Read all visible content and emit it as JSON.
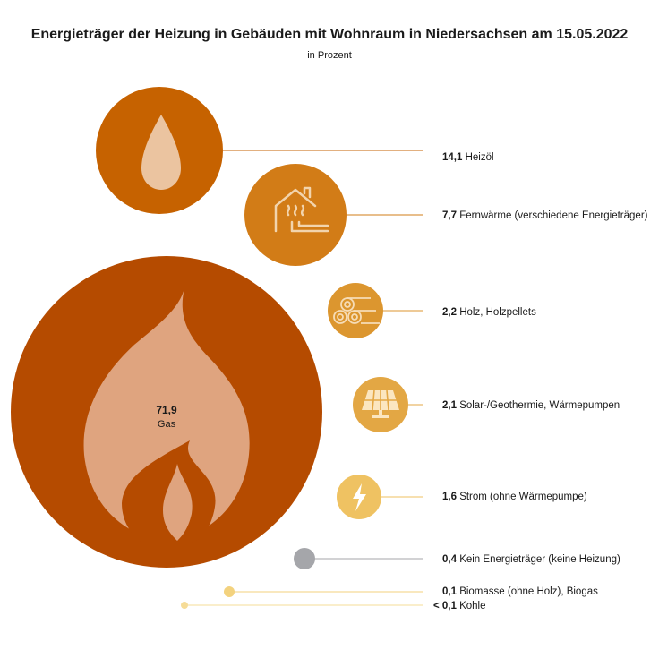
{
  "title": "Energieträger der Heizung in Gebäuden mit Wohnraum in Niedersachsen am 15.05.2022",
  "subtitle": "in Prozent",
  "chart_data": {
    "type": "bubble",
    "unit": "Prozent",
    "series": [
      {
        "label": "Heizöl",
        "value_text": "14,1",
        "value": 14.1,
        "color": "#c66200",
        "icon": "oil-drop-icon"
      },
      {
        "label": "Fernwärme (verschiedene Energieträger)",
        "value_text": "7,7",
        "value": 7.7,
        "color": "#d27c17",
        "icon": "district-heating-house-icon"
      },
      {
        "label": "Holz, Holzpellets",
        "value_text": "2,2",
        "value": 2.2,
        "color": "#dc962f",
        "icon": "wood-logs-icon"
      },
      {
        "label": "Solar-/Geothermie, Wärmepumpen",
        "value_text": "2,1",
        "value": 2.1,
        "color": "#e3a744",
        "icon": "solar-panel-icon"
      },
      {
        "label": "Strom (ohne Wärmepumpe)",
        "value_text": "1,6",
        "value": 1.6,
        "color": "#efc262",
        "icon": "lightning-icon"
      },
      {
        "label": "Kein Energieträger (keine Heizung)",
        "value_text": "0,4",
        "value": 0.4,
        "color": "#a5a6aa",
        "icon": ""
      },
      {
        "label": "Biomasse (ohne Holz), Biogas",
        "value_text": "0,1",
        "value": 0.1,
        "color": "#f3d27e",
        "icon": ""
      },
      {
        "label": "Kohle",
        "value_text": "< 0,1",
        "value": 0.05,
        "color": "#f6dc97",
        "icon": ""
      }
    ],
    "main": {
      "label": "Gas",
      "value_text": "71,9",
      "value": 71.9,
      "color": "#b54b00",
      "icon": "flame-icon"
    }
  }
}
